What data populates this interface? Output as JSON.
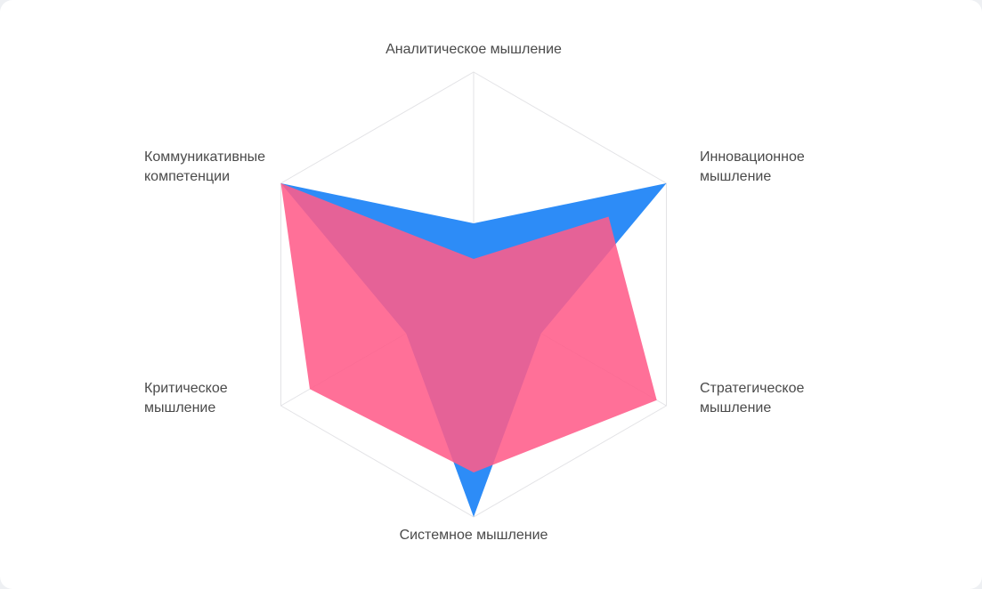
{
  "chart_data": {
    "type": "radar",
    "axes": [
      {
        "label_lines": [
          "Аналитическое мышление"
        ],
        "align": "middle"
      },
      {
        "label_lines": [
          "Инновационное",
          "мышление"
        ],
        "align": "start"
      },
      {
        "label_lines": [
          "Стратегическое",
          "мышление"
        ],
        "align": "start"
      },
      {
        "label_lines": [
          "Системное мышление"
        ],
        "align": "middle"
      },
      {
        "label_lines": [
          "Критическое",
          "мышление"
        ],
        "align": "start"
      },
      {
        "label_lines": [
          "Коммуникативные",
          "компетенции"
        ],
        "align": "start"
      }
    ],
    "rmax": 100,
    "series": [
      {
        "color": "#2d8cf7",
        "opacity": 1,
        "values": [
          32,
          100,
          35,
          100,
          35,
          100
        ]
      },
      {
        "color": "#ff5c8a",
        "opacity": 0.88,
        "values": [
          16,
          70,
          95,
          80,
          85,
          100
        ]
      }
    ],
    "grid": true
  }
}
